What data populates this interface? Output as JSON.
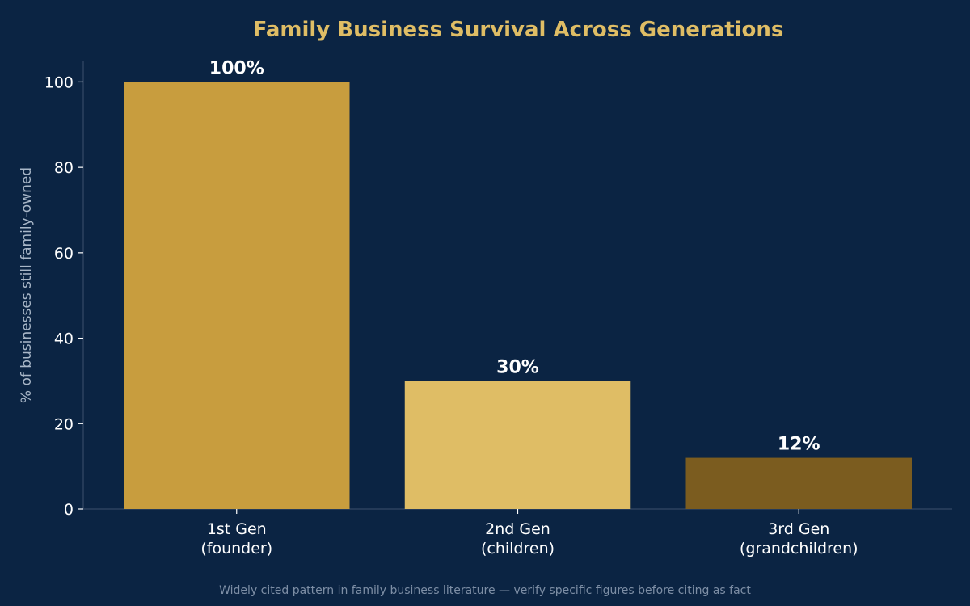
{
  "chart_data": {
    "type": "bar",
    "title": "Family Business Survival Across Generations",
    "xlabel": "",
    "ylabel": "% of businesses still family-owned",
    "ylim": [
      0,
      105
    ],
    "yticks": [
      0,
      20,
      40,
      60,
      80,
      100
    ],
    "categories": [
      [
        "1st Gen",
        "(founder)"
      ],
      [
        "2nd Gen",
        "(children)"
      ],
      [
        "3rd Gen",
        "(grandchildren)"
      ]
    ],
    "values": [
      100,
      30,
      12
    ],
    "data_labels": [
      "100%",
      "30%",
      "12%"
    ],
    "colors": [
      "#c89d3e",
      "#dfbd65",
      "#7b5c1f"
    ],
    "grid": false,
    "legend": "none"
  },
  "footnote": "Widely cited pattern in family business literature — verify specific figures before citing as fact"
}
